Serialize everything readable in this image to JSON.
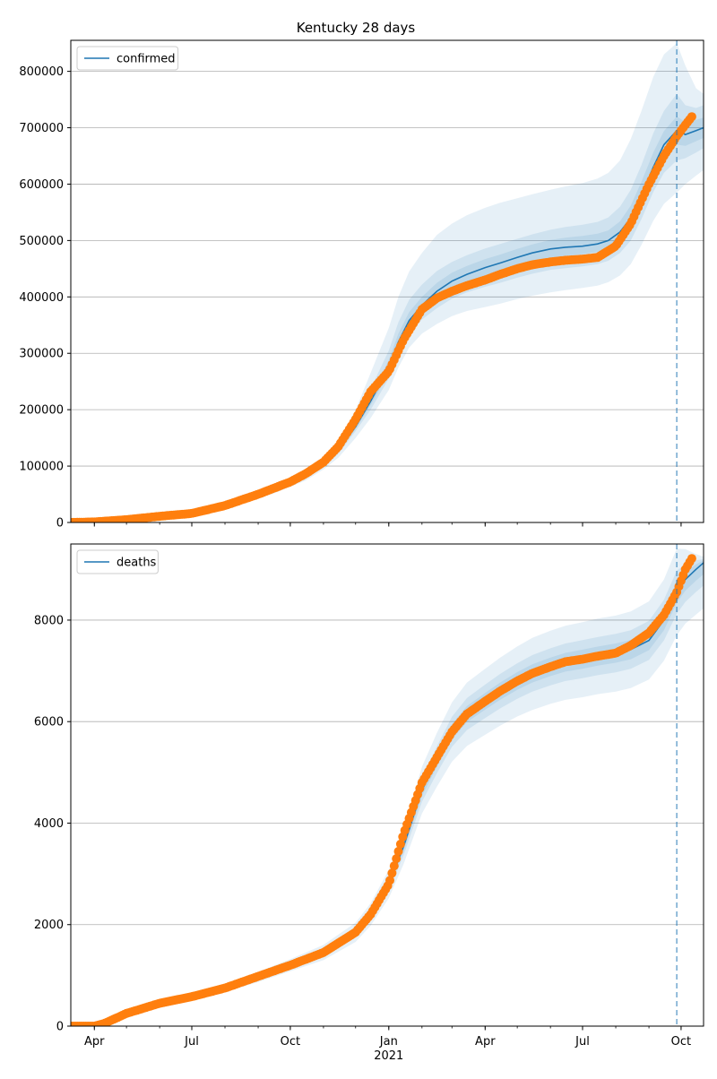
{
  "title": "Kentucky 28 days",
  "colors": {
    "model_line": "#1f77b4",
    "band": "#1f77b4",
    "observed": "#ff7f0e",
    "grid": "#b0b0b0",
    "vline": "#1f77b4"
  },
  "chart_data": [
    {
      "type": "line",
      "name": "confirmed-panel",
      "legend": {
        "label": "confirmed",
        "placement": "top-left"
      },
      "grid": {
        "y": true,
        "x": false
      },
      "xlim": [
        "2020-03-10",
        "2021-10-22"
      ],
      "ylim": [
        0,
        855000
      ],
      "y_ticks": [
        0,
        100000,
        200000,
        300000,
        400000,
        500000,
        600000,
        700000,
        800000
      ],
      "forecast_start": "2021-09-27",
      "model": {
        "x": [
          "2020-03-10",
          "2020-04-15",
          "2020-05-15",
          "2020-06-15",
          "2020-07-15",
          "2020-08-15",
          "2020-09-15",
          "2020-10-15",
          "2020-11-01",
          "2020-11-15",
          "2020-12-01",
          "2020-12-15",
          "2021-01-01",
          "2021-01-10",
          "2021-01-20",
          "2021-02-01",
          "2021-02-15",
          "2021-03-01",
          "2021-03-15",
          "2021-04-01",
          "2021-04-15",
          "2021-05-01",
          "2021-05-15",
          "2021-06-01",
          "2021-06-15",
          "2021-07-01",
          "2021-07-15",
          "2021-07-25",
          "2021-08-05",
          "2021-08-15",
          "2021-08-25",
          "2021-09-05",
          "2021-09-15",
          "2021-09-27",
          "2021-10-05",
          "2021-10-15",
          "2021-10-22"
        ],
        "y": [
          0,
          2000,
          6000,
          12000,
          20000,
          38000,
          55000,
          80000,
          102000,
          128000,
          170000,
          215000,
          275000,
          320000,
          358000,
          385000,
          410000,
          428000,
          440000,
          452000,
          460000,
          470000,
          478000,
          485000,
          488000,
          490000,
          494000,
          500000,
          515000,
          540000,
          580000,
          630000,
          670000,
          695000,
          688000,
          695000,
          700000
        ],
        "bands": [
          {
            "lower": [
              0,
              1800,
              5500,
              11000,
              19000,
              35000,
              51000,
              74000,
              94000,
              115000,
              150000,
              185000,
              235000,
              275000,
              310000,
              335000,
              352000,
              366000,
              375000,
              382000,
              388000,
              396000,
              402000,
              408000,
              412000,
              416000,
              420000,
              426000,
              438000,
              458000,
              492000,
              535000,
              565000,
              585000,
              600000,
              615000,
              625000
            ],
            "upper": [
              0,
              2300,
              7000,
              14000,
              23000,
              43000,
              61000,
              89000,
              115000,
              146000,
              200000,
              265000,
              345000,
              400000,
              445000,
              478000,
              510000,
              530000,
              545000,
              558000,
              567000,
              575000,
              582000,
              590000,
              596000,
              602000,
              610000,
              620000,
              642000,
              680000,
              730000,
              790000,
              830000,
              850000,
              810000,
              770000,
              760000
            ]
          },
          {
            "lower": [
              0,
              1900,
              5700,
              11400,
              19500,
              36500,
              53000,
              77000,
              98000,
              122000,
              162000,
              200000,
              255000,
              298000,
              334000,
              360000,
              380000,
              397000,
              408000,
              418000,
              425000,
              434000,
              441000,
              448000,
              451000,
              454000,
              458000,
              464000,
              478000,
              500000,
              538000,
              586000,
              620000,
              642000,
              646000,
              656000,
              664000
            ],
            "upper": [
              0,
              2150,
              6500,
              13000,
              21500,
              40500,
              58000,
              85000,
              108000,
              136000,
              183000,
              237000,
              305000,
              355000,
              395000,
              422000,
              446000,
              462000,
              474000,
              486000,
              494000,
              503000,
              511000,
              519000,
              524000,
              528000,
              533000,
              541000,
              560000,
              590000,
              634000,
              690000,
              730000,
              760000,
              740000,
              735000,
              740000
            ]
          },
          {
            "lower": [
              0,
              1950,
              5850,
              11700,
              19800,
              37200,
              54000,
              78500,
              100000,
              125000,
              166000,
              208000,
              265000,
              310000,
              346000,
              373000,
              396000,
              414000,
              426000,
              437000,
              445000,
              455000,
              462000,
              469000,
              473000,
              476000,
              480000,
              486000,
              500000,
              524000,
              562000,
              612000,
              648000,
              670000,
              668000,
              676000,
              682000
            ],
            "upper": [
              0,
              2070,
              6250,
              12500,
              20700,
              39200,
              56500,
              82000,
              104500,
              131500,
              176000,
              224000,
              288000,
              335000,
              373000,
              400000,
              425000,
              443000,
              455000,
              467000,
              475000,
              485000,
              493000,
              501000,
              505000,
              508000,
              512000,
              518000,
              534000,
              562000,
              604000,
              656000,
              694000,
              720000,
              710000,
              714000,
              718000
            ]
          }
        ]
      },
      "observed": {
        "x": [
          "2020-03-10",
          "2020-04-01",
          "2020-05-01",
          "2020-06-01",
          "2020-07-01",
          "2020-08-01",
          "2020-09-01",
          "2020-10-01",
          "2020-10-15",
          "2020-11-01",
          "2020-11-15",
          "2020-12-01",
          "2020-12-15",
          "2021-01-01",
          "2021-01-15",
          "2021-02-01",
          "2021-02-15",
          "2021-03-01",
          "2021-03-15",
          "2021-04-01",
          "2021-04-15",
          "2021-05-01",
          "2021-05-15",
          "2021-06-01",
          "2021-06-15",
          "2021-07-01",
          "2021-07-15",
          "2021-08-01",
          "2021-08-15",
          "2021-09-01",
          "2021-09-15",
          "2021-09-27",
          "2021-10-05",
          "2021-10-12"
        ],
        "y": [
          0,
          1000,
          5000,
          11000,
          16000,
          30000,
          50000,
          72000,
          86000,
          107000,
          135000,
          183000,
          232000,
          268000,
          325000,
          378000,
          398000,
          410000,
          420000,
          430000,
          440000,
          450000,
          457000,
          462000,
          465000,
          467000,
          470000,
          490000,
          530000,
          600000,
          650000,
          685000,
          705000,
          722000
        ]
      }
    },
    {
      "type": "line",
      "name": "deaths-panel",
      "legend": {
        "label": "deaths",
        "placement": "top-left"
      },
      "grid": {
        "y": true,
        "x": false
      },
      "xlim": [
        "2020-03-10",
        "2021-10-22"
      ],
      "ylim": [
        0,
        9500
      ],
      "y_ticks": [
        0,
        2000,
        4000,
        6000,
        8000
      ],
      "forecast_start": "2021-09-27",
      "x_ticks": [
        {
          "date": "2020-04-01",
          "label": "Apr"
        },
        {
          "date": "2020-07-01",
          "label": "Jul"
        },
        {
          "date": "2020-10-01",
          "label": "Oct"
        },
        {
          "date": "2021-01-01",
          "label": "Jan",
          "sublabel": "2021"
        },
        {
          "date": "2021-04-01",
          "label": "Apr"
        },
        {
          "date": "2021-07-01",
          "label": "Jul"
        },
        {
          "date": "2021-10-01",
          "label": "Oct"
        }
      ],
      "model": {
        "x": [
          "2020-03-10",
          "2020-04-01",
          "2020-05-01",
          "2020-06-01",
          "2020-07-01",
          "2020-08-01",
          "2020-09-01",
          "2020-10-01",
          "2020-11-01",
          "2020-12-01",
          "2020-12-15",
          "2021-01-01",
          "2021-01-15",
          "2021-02-01",
          "2021-02-15",
          "2021-03-01",
          "2021-03-15",
          "2021-04-01",
          "2021-04-15",
          "2021-05-01",
          "2021-05-15",
          "2021-06-01",
          "2021-06-15",
          "2021-07-01",
          "2021-07-15",
          "2021-08-01",
          "2021-08-15",
          "2021-09-01",
          "2021-09-15",
          "2021-09-27",
          "2021-10-05",
          "2021-10-15",
          "2021-10-22"
        ],
        "y": [
          0,
          30,
          260,
          450,
          580,
          750,
          970,
          1200,
          1450,
          1850,
          2200,
          2800,
          3550,
          4650,
          5250,
          5800,
          6150,
          6400,
          6600,
          6800,
          6950,
          7080,
          7170,
          7230,
          7290,
          7350,
          7420,
          7600,
          8000,
          8550,
          8800,
          9000,
          9130
        ],
        "bands": [
          {
            "lower": [
              0,
              25,
              230,
              400,
              520,
              670,
              870,
              1080,
              1300,
              1660,
              1980,
              2520,
              3200,
              4190,
              4720,
              5210,
              5520,
              5740,
              5920,
              6100,
              6230,
              6350,
              6430,
              6480,
              6540,
              6590,
              6660,
              6830,
              7200,
              7700,
              7930,
              8110,
              8230
            ],
            "upper": [
              0,
              35,
              290,
              500,
              640,
              830,
              1070,
              1320,
              1600,
              2040,
              2420,
              3080,
              3900,
              5110,
              5780,
              6380,
              6770,
              7040,
              7260,
              7480,
              7650,
              7790,
              7890,
              7960,
              8030,
              8090,
              8170,
              8370,
              8800,
              9410,
              9400,
              9300,
              9250
            ]
          },
          {
            "lower": [
              0,
              27,
              245,
              425,
              550,
              710,
              920,
              1140,
              1375,
              1755,
              2090,
              2660,
              3375,
              4420,
              4985,
              5505,
              5835,
              6070,
              6260,
              6450,
              6590,
              6715,
              6800,
              6855,
              6915,
              6970,
              7040,
              7215,
              7600,
              8125,
              8360,
              8555,
              8680
            ],
            "upper": [
              0,
              33,
              275,
              475,
              610,
              790,
              1020,
              1260,
              1525,
              1945,
              2310,
              2940,
              3725,
              4880,
              5515,
              6095,
              6465,
              6730,
              6940,
              7150,
              7310,
              7445,
              7540,
              7605,
              7665,
              7730,
              7800,
              7985,
              8400,
              8975,
              9100,
              9180,
              9200
            ]
          },
          {
            "lower": [
              0,
              28,
              252,
              437,
              565,
              730,
              945,
              1170,
              1412,
              1802,
              2145,
              2730,
              3462,
              4535,
              5118,
              5652,
              5992,
              6235,
              6430,
              6625,
              6770,
              6897,
              6985,
              7042,
              7102,
              7160,
              7230,
              7407,
              7800,
              8337,
              8580,
              8778,
              8905
            ],
            "upper": [
              0,
              32,
              268,
              463,
              595,
              770,
              995,
              1230,
              1488,
              1898,
              2255,
              2870,
              3638,
              4765,
              5382,
              5948,
              6308,
              6565,
              6770,
              6975,
              7130,
              7263,
              7355,
              7418,
              7478,
              7540,
              7610,
              7793,
              8200,
              8763,
              8950,
              9100,
              9180
            ]
          }
        ]
      },
      "observed": {
        "x": [
          "2020-03-10",
          "2020-04-01",
          "2020-04-10",
          "2020-05-01",
          "2020-06-01",
          "2020-07-01",
          "2020-08-01",
          "2020-09-01",
          "2020-10-01",
          "2020-11-01",
          "2020-12-01",
          "2020-12-15",
          "2021-01-01",
          "2021-01-15",
          "2021-02-01",
          "2021-02-15",
          "2021-03-01",
          "2021-03-15",
          "2021-04-01",
          "2021-04-15",
          "2021-05-01",
          "2021-05-15",
          "2021-06-01",
          "2021-06-15",
          "2021-07-01",
          "2021-07-15",
          "2021-08-01",
          "2021-08-15",
          "2021-09-01",
          "2021-09-15",
          "2021-09-27",
          "2021-10-05",
          "2021-10-12"
        ],
        "y": [
          0,
          0,
          50,
          250,
          450,
          580,
          750,
          980,
          1200,
          1450,
          1850,
          2200,
          2800,
          3800,
          4800,
          5300,
          5800,
          6150,
          6400,
          6600,
          6800,
          6950,
          7080,
          7180,
          7230,
          7290,
          7350,
          7500,
          7750,
          8100,
          8550,
          9000,
          9250
        ]
      }
    }
  ]
}
